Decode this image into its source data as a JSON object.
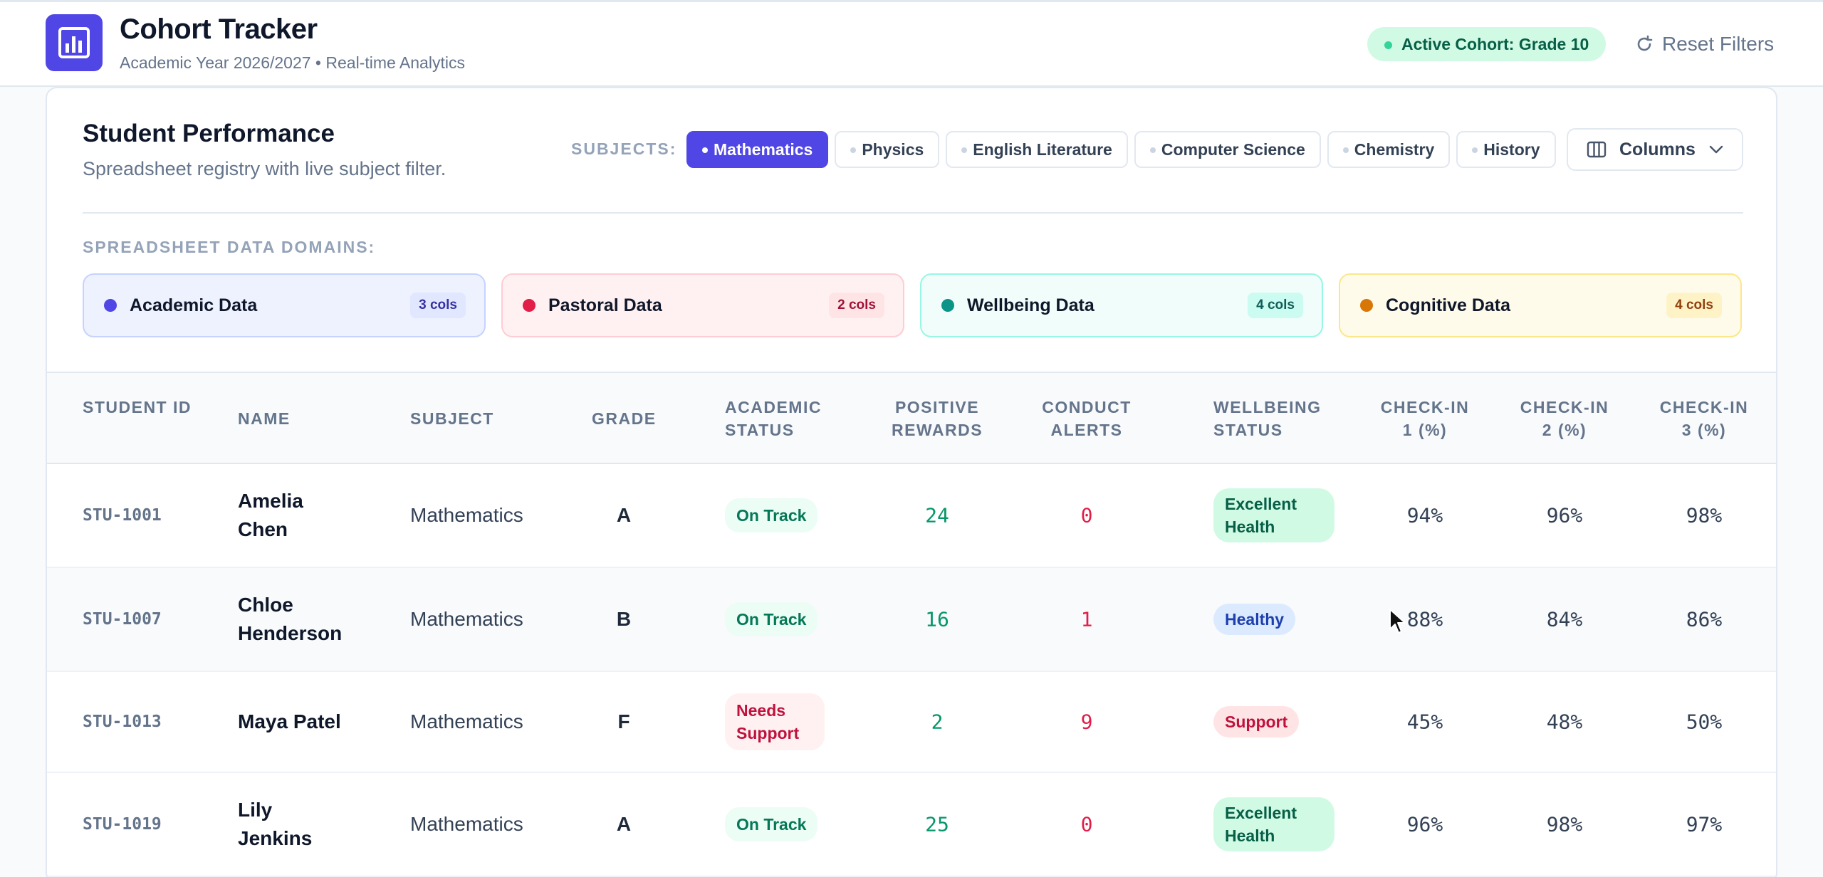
{
  "header": {
    "title": "Cohort Tracker",
    "subtitle": "Academic Year 2026/2027 • Real-time Analytics",
    "cohort_badge": "Active Cohort: Grade 10",
    "reset_label": "Reset Filters"
  },
  "panel": {
    "title": "Student Performance",
    "subtitle": "Spreadsheet registry with live subject filter.",
    "subjects_label": "SUBJECTS:",
    "subjects": [
      "Mathematics",
      "Physics",
      "English Literature",
      "Computer Science",
      "Chemistry",
      "History"
    ],
    "active_subject": "Mathematics",
    "columns_label": "Columns",
    "domains_label": "SPREADSHEET DATA DOMAINS:",
    "domains": [
      {
        "name": "Academic Data",
        "count": "3 cols",
        "color": "#4f46e5"
      },
      {
        "name": "Pastoral Data",
        "count": "2 cols",
        "color": "#e11d48"
      },
      {
        "name": "Wellbeing Data",
        "count": "4 cols",
        "color": "#0d9488"
      },
      {
        "name": "Cognitive Data",
        "count": "4 cols",
        "color": "#d97706"
      }
    ]
  },
  "table": {
    "headers": {
      "student_id": "STUDENT ID",
      "name": "NAME",
      "subject": "SUBJECT",
      "grade": "GRADE",
      "academic_status": "ACADEMIC STATUS",
      "positive_rewards": "POSITIVE REWARDS",
      "conduct_alerts": "CONDUCT ALERTS",
      "wellbeing_status": "WELLBEING STATUS",
      "checkin1": "CHECK-IN 1 (%)",
      "checkin2": "CHECK-IN 2 (%)",
      "checkin3": "CHECK-IN 3 (%)"
    },
    "rows": [
      {
        "id": "STU-1001",
        "name": "Amelia Chen",
        "subject": "Mathematics",
        "grade": "A",
        "academic_status": "On Track",
        "rewards": "24",
        "alerts": "0",
        "wellbeing": "Excellent Health",
        "c1": "94%",
        "c2": "96%",
        "c3": "98%"
      },
      {
        "id": "STU-1007",
        "name": "Chloe Henderson",
        "subject": "Mathematics",
        "grade": "B",
        "academic_status": "On Track",
        "rewards": "16",
        "alerts": "1",
        "wellbeing": "Healthy",
        "c1": "88%",
        "c2": "84%",
        "c3": "86%"
      },
      {
        "id": "STU-1013",
        "name": "Maya Patel",
        "subject": "Mathematics",
        "grade": "F",
        "academic_status": "Needs Support",
        "rewards": "2",
        "alerts": "9",
        "wellbeing": "Support",
        "c1": "45%",
        "c2": "48%",
        "c3": "50%"
      },
      {
        "id": "STU-1019",
        "name": "Lily Jenkins",
        "subject": "Mathematics",
        "grade": "A",
        "academic_status": "On Track",
        "rewards": "25",
        "alerts": "0",
        "wellbeing": "Excellent Health",
        "c1": "96%",
        "c2": "98%",
        "c3": "97%"
      }
    ]
  }
}
